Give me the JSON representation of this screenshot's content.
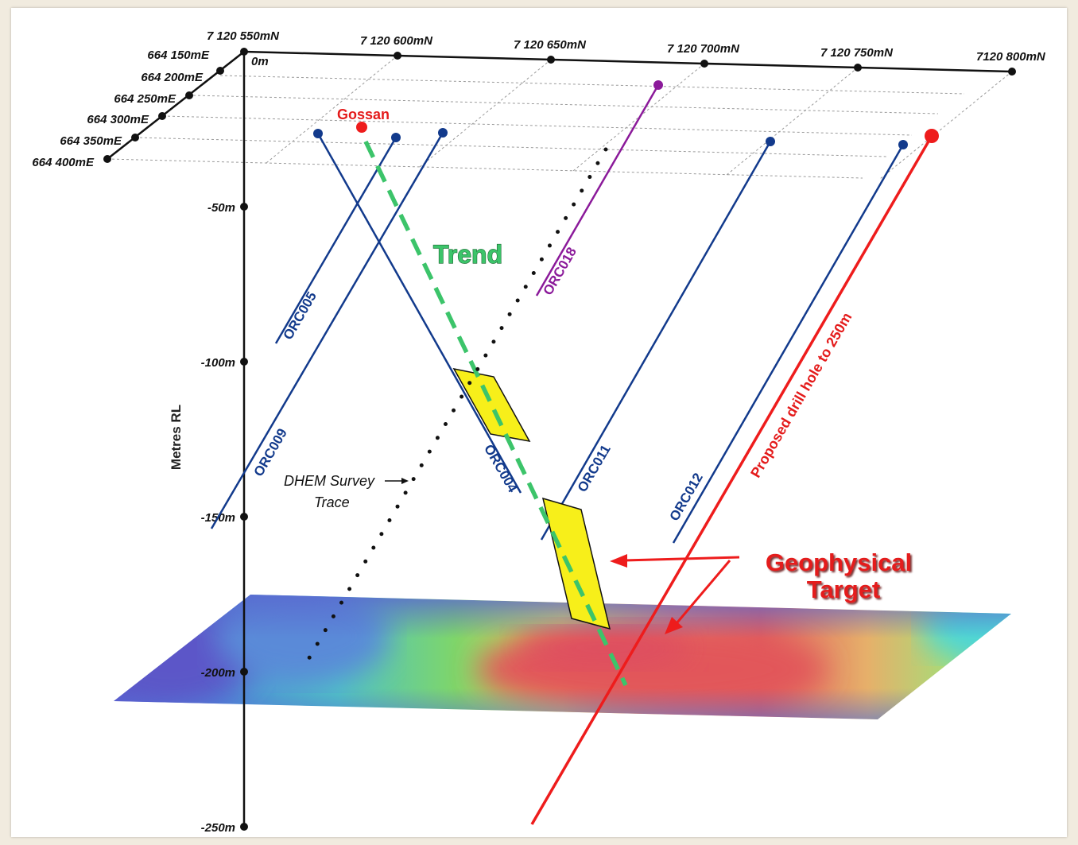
{
  "northings": [
    "7 120 550mN",
    "7 120 600mN",
    "7 120 650mN",
    "7 120 700mN",
    "7 120 750mN",
    "7120 800mN"
  ],
  "eastings": [
    "664 150mE",
    "664 200mE",
    "664 250mE",
    "664 300mE",
    "664 350mE",
    "664 400mE"
  ],
  "depths": [
    "0m",
    "-50m",
    "-100m",
    "-150m",
    "-200m",
    "-250m"
  ],
  "axis_title": "Metres RL",
  "holes": {
    "orc005": "ORC005",
    "orc009": "ORC009",
    "orc004": "ORC004",
    "orc018": "ORC018",
    "orc011": "ORC011",
    "orc012": "ORC012"
  },
  "annotations": {
    "gossan": "Gossan",
    "trend": "Trend",
    "dhem_line1": "DHEM Survey",
    "dhem_line2": "Trace",
    "proposed": "Proposed drill hole to 250m",
    "target_line1": "Geophysical",
    "target_line2": "Target"
  },
  "colors": {
    "drill_hole": "#123a8c",
    "orc018": "#8b1a9a",
    "proposed": "#ee1c1c",
    "trend": "#3cc46a",
    "target_fill": "#f7ef1a",
    "target_text": "#e41b1b"
  }
}
